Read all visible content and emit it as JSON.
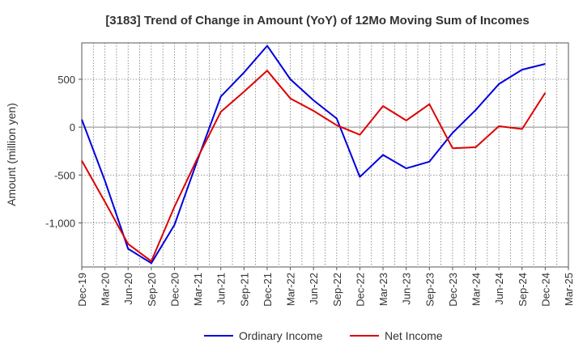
{
  "chart_data": {
    "type": "line",
    "title": "[3183]  Trend of Change in Amount (YoY) of 12Mo Moving Sum of Incomes",
    "xlabel": "",
    "ylabel": "Amount (million yen)",
    "categories": [
      "Dec-19",
      "Mar-20",
      "Jun-20",
      "Sep-20",
      "Dec-20",
      "Mar-21",
      "Jun-21",
      "Sep-21",
      "Dec-21",
      "Mar-22",
      "Jun-22",
      "Sep-22",
      "Dec-22",
      "Mar-23",
      "Jun-23",
      "Sep-23",
      "Dec-23",
      "Mar-24",
      "Jun-24",
      "Sep-24",
      "Dec-24",
      "Mar-25"
    ],
    "yticks": [
      500,
      0,
      -500,
      -1000
    ],
    "ytick_labels": [
      "500",
      "0",
      "-500",
      "-1,000"
    ],
    "ylim": [
      -1460,
      880
    ],
    "grid": true,
    "legend_position": "bottom-center",
    "series": [
      {
        "name": "Ordinary Income",
        "color": "#0000dd",
        "values": [
          80,
          -560,
          -1270,
          -1420,
          -1020,
          -340,
          320,
          570,
          850,
          500,
          280,
          90,
          -520,
          -290,
          -430,
          -360,
          -60,
          180,
          450,
          600,
          660,
          null
        ]
      },
      {
        "name": "Net Income",
        "color": "#dd0000",
        "values": [
          -350,
          -780,
          -1220,
          -1400,
          -830,
          -320,
          160,
          370,
          590,
          300,
          170,
          20,
          -80,
          220,
          70,
          240,
          -220,
          -210,
          10,
          -20,
          360,
          null
        ]
      }
    ]
  }
}
